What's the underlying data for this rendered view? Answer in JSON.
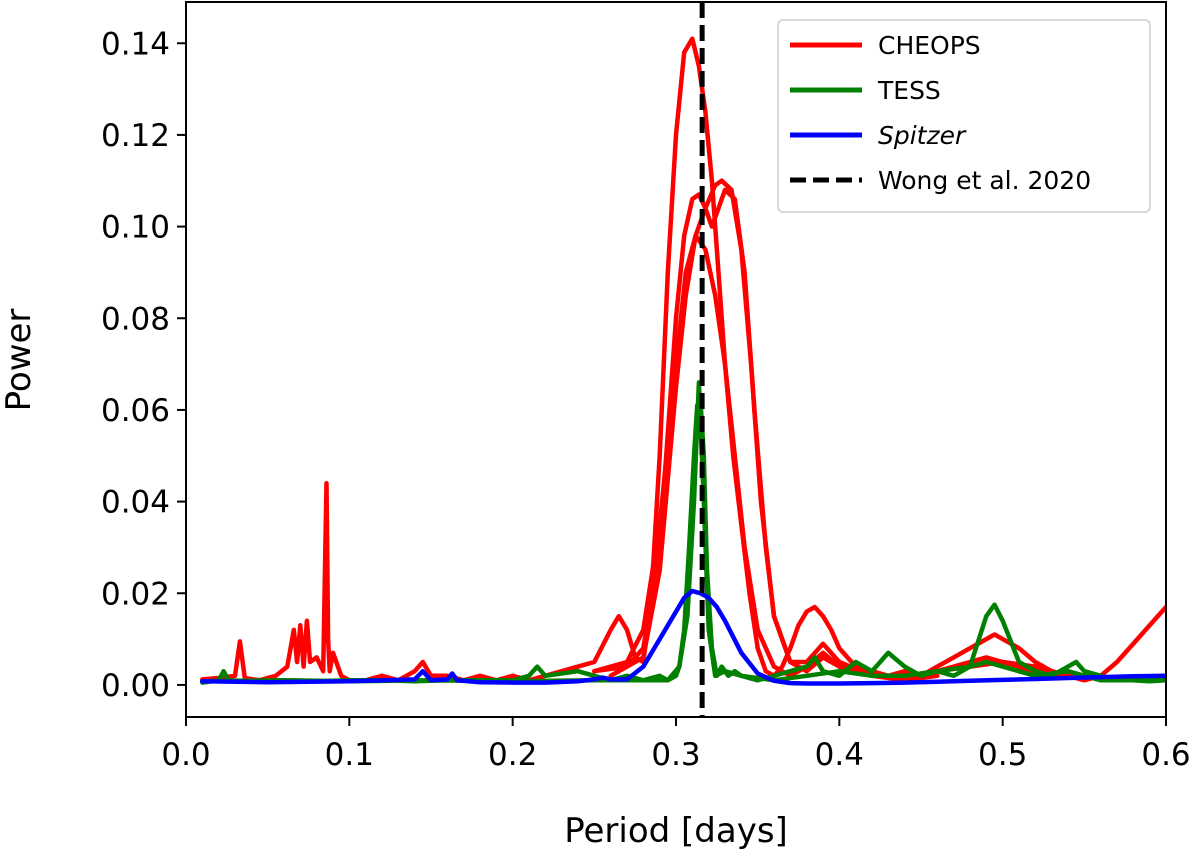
{
  "chart_data": {
    "type": "line",
    "title": "",
    "xlabel": "Period [days]",
    "ylabel": "Power",
    "xlim": [
      0.0,
      0.6
    ],
    "ylim": [
      -0.007,
      0.149
    ],
    "xticks": [
      0.0,
      0.1,
      0.2,
      0.3,
      0.4,
      0.5,
      0.6
    ],
    "xtick_labels": [
      "0.0",
      "0.1",
      "0.2",
      "0.3",
      "0.4",
      "0.5",
      "0.6"
    ],
    "yticks": [
      0.0,
      0.02,
      0.04,
      0.06,
      0.08,
      0.1,
      0.12,
      0.14
    ],
    "ytick_labels": [
      "0.00",
      "0.02",
      "0.04",
      "0.06",
      "0.08",
      "0.10",
      "0.12",
      "0.14"
    ],
    "grid": false,
    "legend": {
      "position": "top-right",
      "entries": [
        {
          "label": "CHEOPS",
          "color": "#ff0000",
          "style": "solid",
          "italic": false
        },
        {
          "label": "TESS",
          "color": "#008000",
          "style": "solid",
          "italic": false
        },
        {
          "label": "Spitzer",
          "color": "#0000ff",
          "style": "solid",
          "italic": true
        },
        {
          "label": "Wong et al. 2020",
          "color": "#000000",
          "style": "dashed",
          "italic": false
        }
      ]
    },
    "reference_line": {
      "label": "Wong et al. 2020",
      "x": 0.316,
      "color": "#000000"
    },
    "series": [
      {
        "name": "CHEOPS",
        "color": "#ff0000",
        "x": [
          0.01,
          0.02,
          0.03,
          0.033,
          0.036,
          0.045,
          0.055,
          0.062,
          0.066,
          0.068,
          0.07,
          0.072,
          0.074,
          0.076,
          0.08,
          0.084,
          0.086,
          0.087,
          0.088,
          0.09,
          0.095,
          0.1,
          0.11,
          0.12,
          0.13,
          0.14,
          0.145,
          0.15,
          0.16,
          0.17,
          0.18,
          0.19,
          0.2,
          0.21,
          0.22,
          0.23,
          0.24,
          0.25,
          0.26,
          0.265,
          0.27,
          0.275,
          0.28,
          0.285,
          0.29,
          0.295,
          0.3,
          0.305,
          0.31,
          0.314,
          0.318,
          0.322,
          0.326,
          0.33,
          0.335,
          0.34,
          0.345,
          0.35,
          0.355,
          0.36,
          0.365,
          0.37,
          0.375,
          0.38,
          0.385,
          0.39,
          0.395,
          0.4,
          0.41,
          0.42,
          0.43,
          0.44,
          0.45,
          0.46,
          0.47,
          0.48,
          0.49,
          0.495,
          0.5,
          0.51,
          0.52,
          0.53,
          0.54,
          0.55,
          0.56,
          0.57,
          0.58,
          0.59,
          0.6
        ],
        "y": [
          0.0012,
          0.0015,
          0.002,
          0.0095,
          0.0015,
          0.001,
          0.002,
          0.004,
          0.012,
          0.005,
          0.013,
          0.004,
          0.014,
          0.005,
          0.006,
          0.003,
          0.044,
          0.01,
          0.003,
          0.007,
          0.002,
          0.001,
          0.001,
          0.002,
          0.001,
          0.003,
          0.005,
          0.002,
          0.002,
          0.001,
          0.002,
          0.001,
          0.002,
          0.001,
          0.002,
          0.003,
          0.004,
          0.005,
          0.012,
          0.015,
          0.012,
          0.006,
          0.005,
          0.02,
          0.05,
          0.09,
          0.12,
          0.138,
          0.141,
          0.135,
          0.125,
          0.11,
          0.09,
          0.07,
          0.05,
          0.035,
          0.02,
          0.008,
          0.003,
          0.002,
          0.004,
          0.008,
          0.013,
          0.016,
          0.017,
          0.015,
          0.012,
          0.008,
          0.004,
          0.003,
          0.002,
          0.003,
          0.002,
          0.004,
          0.006,
          0.008,
          0.01,
          0.011,
          0.01,
          0.008,
          0.005,
          0.003,
          0.002,
          0.001,
          0.002,
          0.005,
          0.009,
          0.013,
          0.017
        ]
      },
      {
        "name": "CHEOPS",
        "color": "#ff0000",
        "x": [
          0.25,
          0.27,
          0.28,
          0.29,
          0.3,
          0.305,
          0.31,
          0.314,
          0.318,
          0.322,
          0.326,
          0.33,
          0.336,
          0.342,
          0.348,
          0.355,
          0.36,
          0.37,
          0.38,
          0.39,
          0.4,
          0.42,
          0.44,
          0.46,
          0.48,
          0.49,
          0.5,
          0.52,
          0.54,
          0.56
        ],
        "y": [
          0.003,
          0.004,
          0.008,
          0.03,
          0.08,
          0.098,
          0.106,
          0.107,
          0.104,
          0.1,
          0.104,
          0.108,
          0.106,
          0.09,
          0.06,
          0.03,
          0.015,
          0.005,
          0.003,
          0.006,
          0.004,
          0.002,
          0.002,
          0.003,
          0.005,
          0.006,
          0.005,
          0.003,
          0.002,
          0.002
        ]
      },
      {
        "name": "CHEOPS",
        "color": "#ff0000",
        "x": [
          0.26,
          0.28,
          0.29,
          0.3,
          0.306,
          0.312,
          0.318,
          0.324,
          0.328,
          0.334,
          0.34,
          0.346,
          0.352,
          0.36,
          0.37,
          0.38,
          0.39,
          0.4,
          0.42,
          0.44,
          0.46,
          0.48,
          0.5,
          0.52,
          0.54,
          0.56
        ],
        "y": [
          0.002,
          0.006,
          0.025,
          0.065,
          0.085,
          0.098,
          0.104,
          0.109,
          0.11,
          0.108,
          0.095,
          0.07,
          0.04,
          0.015,
          0.005,
          0.005,
          0.009,
          0.005,
          0.002,
          0.002,
          0.003,
          0.004,
          0.005,
          0.004,
          0.002,
          0.002
        ]
      },
      {
        "name": "CHEOPS",
        "color": "#ff0000",
        "x": [
          0.25,
          0.27,
          0.28,
          0.29,
          0.3,
          0.306,
          0.312,
          0.318,
          0.324,
          0.33,
          0.336,
          0.342,
          0.35,
          0.36,
          0.37,
          0.38,
          0.39,
          0.4,
          0.42,
          0.44,
          0.46
        ],
        "y": [
          0.003,
          0.005,
          0.012,
          0.035,
          0.07,
          0.09,
          0.098,
          0.095,
          0.085,
          0.07,
          0.05,
          0.03,
          0.012,
          0.004,
          0.002,
          0.004,
          0.007,
          0.004,
          0.002,
          0.001,
          0.002
        ]
      },
      {
        "name": "TESS",
        "color": "#008000",
        "x": [
          0.01,
          0.02,
          0.023,
          0.026,
          0.04,
          0.06,
          0.08,
          0.1,
          0.12,
          0.14,
          0.16,
          0.18,
          0.2,
          0.21,
          0.215,
          0.22,
          0.24,
          0.25,
          0.26,
          0.27,
          0.28,
          0.29,
          0.295,
          0.3,
          0.302,
          0.305,
          0.308,
          0.311,
          0.313,
          0.315,
          0.317,
          0.319,
          0.322,
          0.325,
          0.328,
          0.332,
          0.336,
          0.34,
          0.35,
          0.36,
          0.37,
          0.38,
          0.385,
          0.39,
          0.4,
          0.41,
          0.42,
          0.43,
          0.44,
          0.45,
          0.46,
          0.47,
          0.48,
          0.49,
          0.495,
          0.5,
          0.51,
          0.52,
          0.53,
          0.54,
          0.545,
          0.55,
          0.56,
          0.57,
          0.58,
          0.59,
          0.6
        ],
        "y": [
          0.0005,
          0.001,
          0.003,
          0.001,
          0.0008,
          0.001,
          0.0008,
          0.001,
          0.001,
          0.0008,
          0.001,
          0.001,
          0.001,
          0.002,
          0.004,
          0.002,
          0.003,
          0.002,
          0.001,
          0.002,
          0.001,
          0.002,
          0.001,
          0.002,
          0.004,
          0.012,
          0.03,
          0.05,
          0.061,
          0.062,
          0.05,
          0.025,
          0.008,
          0.002,
          0.004,
          0.002,
          0.003,
          0.002,
          0.001,
          0.002,
          0.003,
          0.004,
          0.006,
          0.003,
          0.002,
          0.005,
          0.003,
          0.007,
          0.004,
          0.002,
          0.003,
          0.002,
          0.004,
          0.015,
          0.0175,
          0.014,
          0.005,
          0.003,
          0.002,
          0.004,
          0.005,
          0.003,
          0.002,
          0.001,
          0.001,
          0.0008,
          0.001
        ]
      },
      {
        "name": "TESS",
        "color": "#008000",
        "x": [
          0.01,
          0.06,
          0.1,
          0.15,
          0.2,
          0.25,
          0.28,
          0.295,
          0.302,
          0.307,
          0.311,
          0.314,
          0.317,
          0.32,
          0.324,
          0.33,
          0.34,
          0.36,
          0.38,
          0.4,
          0.42,
          0.44,
          0.46,
          0.48,
          0.49,
          0.5,
          0.52,
          0.54,
          0.56,
          0.6
        ],
        "y": [
          0.0008,
          0.001,
          0.0008,
          0.001,
          0.0008,
          0.001,
          0.001,
          0.001,
          0.004,
          0.015,
          0.04,
          0.066,
          0.04,
          0.012,
          0.002,
          0.003,
          0.002,
          0.001,
          0.002,
          0.003,
          0.002,
          0.002,
          0.003,
          0.004,
          0.005,
          0.004,
          0.002,
          0.003,
          0.001,
          0.001
        ]
      },
      {
        "name": "Spitzer",
        "color": "#0000ff",
        "x": [
          0.01,
          0.05,
          0.1,
          0.14,
          0.145,
          0.15,
          0.16,
          0.163,
          0.166,
          0.18,
          0.2,
          0.22,
          0.24,
          0.25,
          0.255,
          0.26,
          0.27,
          0.28,
          0.29,
          0.3,
          0.305,
          0.31,
          0.315,
          0.32,
          0.325,
          0.33,
          0.34,
          0.35,
          0.36,
          0.37,
          0.38,
          0.39,
          0.4,
          0.42,
          0.44,
          0.46,
          0.48,
          0.5,
          0.52,
          0.54,
          0.56,
          0.58,
          0.6
        ],
        "y": [
          0.0008,
          0.0006,
          0.0008,
          0.0012,
          0.003,
          0.001,
          0.0012,
          0.0025,
          0.001,
          0.0006,
          0.0005,
          0.0005,
          0.0008,
          0.0012,
          0.0016,
          0.0012,
          0.0012,
          0.004,
          0.01,
          0.016,
          0.019,
          0.0205,
          0.02,
          0.019,
          0.017,
          0.014,
          0.007,
          0.0025,
          0.0009,
          0.0004,
          0.0003,
          0.0003,
          0.0003,
          0.0004,
          0.0005,
          0.0007,
          0.0009,
          0.0011,
          0.0013,
          0.0015,
          0.0017,
          0.0019,
          0.002
        ]
      }
    ]
  }
}
